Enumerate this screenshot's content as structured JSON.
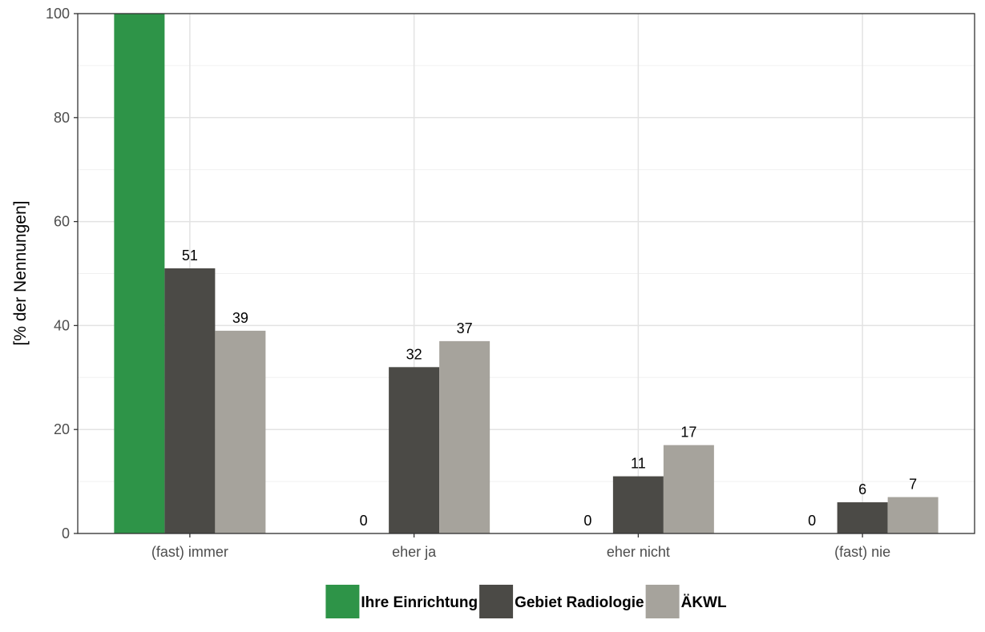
{
  "chart_data": {
    "type": "bar",
    "ylabel": "[% der Nennungen]",
    "xlabel": "",
    "ylim": [
      0,
      100
    ],
    "yticks": [
      0,
      20,
      40,
      60,
      80,
      100
    ],
    "grid": true,
    "legend_position": "bottom",
    "categories": [
      "(fast) immer",
      "eher ja",
      "eher nicht",
      "(fast) nie"
    ],
    "series": [
      {
        "name": "Ihre Einrichtung",
        "color": "#2e9448",
        "values": [
          100,
          0,
          0,
          0
        ],
        "labels": [
          "",
          "0",
          "0",
          "0"
        ]
      },
      {
        "name": "Gebiet Radiologie",
        "color": "#4b4a46",
        "values": [
          51,
          32,
          11,
          6
        ],
        "labels": [
          "51",
          "32",
          "11",
          "6"
        ]
      },
      {
        "name": "ÄKWL",
        "color": "#a6a39c",
        "values": [
          39,
          37,
          17,
          7
        ],
        "labels": [
          "39",
          "37",
          "17",
          "7"
        ]
      }
    ]
  }
}
